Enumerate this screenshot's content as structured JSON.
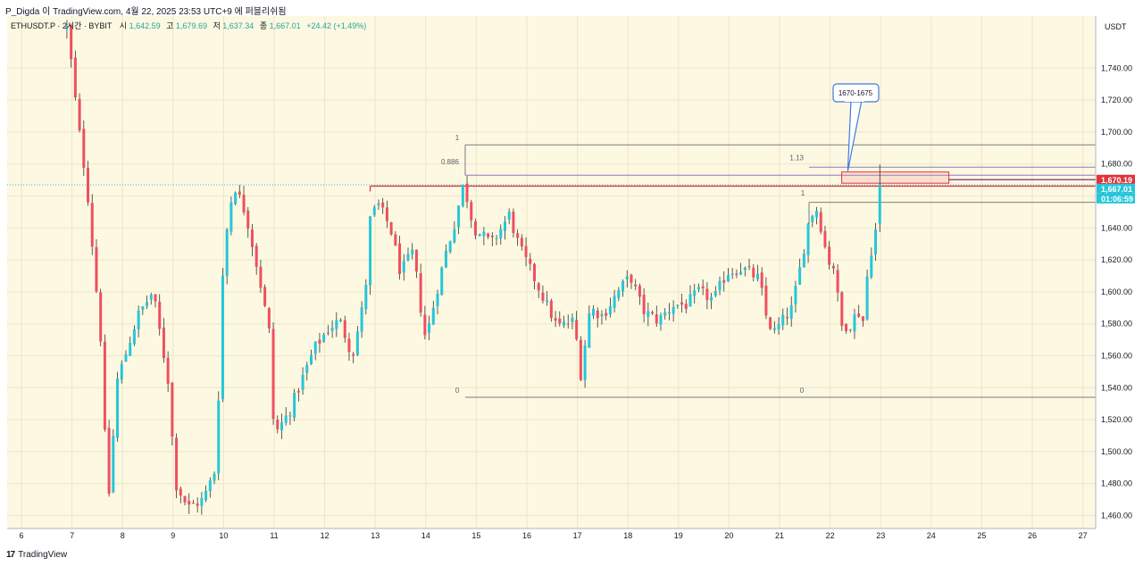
{
  "header": {
    "caption": "P_Digda 이 TradingView.com, 4월 22, 2025 23:53 UTC+9 에 퍼블리쉬됨"
  },
  "legend": {
    "symbol": "ETHUSDT.P · 2시간 · BYBIT",
    "open_label": "시",
    "open_value": "1,642.59",
    "high_label": "고",
    "high_value": "1,679.69",
    "low_label": "저",
    "low_value": "1,637.34",
    "close_label": "종",
    "close_value": "1,667.01",
    "change": "+24.42 (+1.49%)"
  },
  "footer": {
    "brand": "TradingView",
    "brand_mark": "17"
  },
  "colors": {
    "background": "#fdf8e1",
    "up": "#26c6da",
    "down": "#ef4f5f",
    "grid": "#ece6c8",
    "fib": "#7d7d7d",
    "resistance": "#e0343c",
    "zone": "#e0343c",
    "callout": "#3d7ae0",
    "price_line_purple": "#7b2c8a"
  },
  "chart_data": {
    "type": "candlestick",
    "symbol": "ETHUSDT.P",
    "interval": "2h",
    "exchange": "BYBIT",
    "currency_label": "USDT",
    "ylim": [
      1450,
      1760
    ],
    "y_ticks": [
      "1,460.00",
      "1,480.00",
      "1,500.00",
      "1,520.00",
      "1,540.00",
      "1,560.00",
      "1,580.00",
      "1,600.00",
      "1,620.00",
      "1,640.00",
      "1,660.00",
      "1,680.00",
      "1,700.00",
      "1,720.00",
      "1,740.00"
    ],
    "x_ticks": [
      "6",
      "7",
      "8",
      "9",
      "10",
      "11",
      "12",
      "13",
      "14",
      "15",
      "16",
      "17",
      "18",
      "19",
      "20",
      "21",
      "22",
      "23",
      "24",
      "25",
      "26",
      "27"
    ],
    "x_days": [
      6,
      7,
      8,
      9,
      10,
      11,
      12,
      13,
      14,
      15,
      16,
      17,
      18,
      19,
      20,
      21,
      22,
      23,
      24,
      25,
      26,
      27
    ],
    "x_range_days": [
      5.7,
      27.3
    ],
    "anchors": [
      {
        "day": 6.9,
        "price": 1765
      },
      {
        "day": 7.0,
        "price": 1740
      },
      {
        "day": 7.1,
        "price": 1710
      },
      {
        "day": 7.3,
        "price": 1665
      },
      {
        "day": 7.6,
        "price": 1560
      },
      {
        "day": 7.7,
        "price": 1460
      },
      {
        "day": 7.9,
        "price": 1545
      },
      {
        "day": 8.3,
        "price": 1585
      },
      {
        "day": 8.6,
        "price": 1600
      },
      {
        "day": 8.9,
        "price": 1545
      },
      {
        "day": 9.05,
        "price": 1480
      },
      {
        "day": 9.3,
        "price": 1465
      },
      {
        "day": 9.6,
        "price": 1470
      },
      {
        "day": 9.85,
        "price": 1490
      },
      {
        "day": 10.0,
        "price": 1625
      },
      {
        "day": 10.2,
        "price": 1668
      },
      {
        "day": 10.45,
        "price": 1648
      },
      {
        "day": 10.7,
        "price": 1610
      },
      {
        "day": 10.9,
        "price": 1575
      },
      {
        "day": 11.0,
        "price": 1510
      },
      {
        "day": 11.3,
        "price": 1525
      },
      {
        "day": 11.55,
        "price": 1545
      },
      {
        "day": 11.8,
        "price": 1565
      },
      {
        "day": 12.1,
        "price": 1578
      },
      {
        "day": 12.3,
        "price": 1582
      },
      {
        "day": 12.55,
        "price": 1560
      },
      {
        "day": 12.8,
        "price": 1598
      },
      {
        "day": 12.9,
        "price": 1645
      },
      {
        "day": 13.05,
        "price": 1655
      },
      {
        "day": 13.3,
        "price": 1640
      },
      {
        "day": 13.5,
        "price": 1612
      },
      {
        "day": 13.75,
        "price": 1625
      },
      {
        "day": 13.9,
        "price": 1590
      },
      {
        "day": 14.0,
        "price": 1570
      },
      {
        "day": 14.25,
        "price": 1605
      },
      {
        "day": 14.4,
        "price": 1625
      },
      {
        "day": 14.55,
        "price": 1640
      },
      {
        "day": 14.75,
        "price": 1668
      },
      {
        "day": 14.95,
        "price": 1640
      },
      {
        "day": 15.3,
        "price": 1630
      },
      {
        "day": 15.65,
        "price": 1648
      },
      {
        "day": 15.85,
        "price": 1628
      },
      {
        "day": 16.2,
        "price": 1605
      },
      {
        "day": 16.6,
        "price": 1578
      },
      {
        "day": 16.95,
        "price": 1582
      },
      {
        "day": 17.05,
        "price": 1545
      },
      {
        "day": 17.25,
        "price": 1590
      },
      {
        "day": 17.5,
        "price": 1585
      },
      {
        "day": 17.8,
        "price": 1600
      },
      {
        "day": 18.05,
        "price": 1610
      },
      {
        "day": 18.3,
        "price": 1588
      },
      {
        "day": 18.6,
        "price": 1582
      },
      {
        "day": 18.9,
        "price": 1592
      },
      {
        "day": 19.15,
        "price": 1592
      },
      {
        "day": 19.4,
        "price": 1600
      },
      {
        "day": 19.7,
        "price": 1595
      },
      {
        "day": 19.95,
        "price": 1612
      },
      {
        "day": 20.25,
        "price": 1615
      },
      {
        "day": 20.6,
        "price": 1608
      },
      {
        "day": 20.75,
        "price": 1582
      },
      {
        "day": 20.9,
        "price": 1575
      },
      {
        "day": 21.25,
        "price": 1590
      },
      {
        "day": 21.45,
        "price": 1622
      },
      {
        "day": 21.6,
        "price": 1648
      },
      {
        "day": 21.75,
        "price": 1652
      },
      {
        "day": 21.95,
        "price": 1620
      },
      {
        "day": 22.1,
        "price": 1615
      },
      {
        "day": 22.2,
        "price": 1578
      },
      {
        "day": 22.4,
        "price": 1580
      },
      {
        "day": 22.55,
        "price": 1588
      },
      {
        "day": 22.65,
        "price": 1582
      },
      {
        "day": 22.75,
        "price": 1615
      },
      {
        "day": 22.85,
        "price": 1632
      },
      {
        "day": 22.95,
        "price": 1645
      },
      {
        "day": 23.0,
        "price": 1667
      }
    ],
    "fib_left": {
      "level_1": 1692,
      "level_0886": 1673,
      "level_0": 1534,
      "labels": [
        "1",
        "0.886",
        "0"
      ],
      "start_day": 14.78
    },
    "fib_right": {
      "level_1": 1656,
      "level_113": 1678,
      "level_0": 1534,
      "labels": [
        "1",
        "1.13",
        "0"
      ],
      "start_day": 22.35
    },
    "resistance_lines": [
      1670.19,
      1667.01
    ],
    "resistance_start_day": 12.9,
    "zone": {
      "low": 1668,
      "high": 1675,
      "start_day": 22.3,
      "end_day": 24.35
    },
    "callout": {
      "text": "1670-1675",
      "target_day": 22.35,
      "target_price": 1675
    },
    "price_tags": [
      {
        "text": "1,670.19",
        "price": 1670.19,
        "color": "#e0343c"
      },
      {
        "text": "1,667.01",
        "price": 1664.6,
        "color": "#26c6da"
      },
      {
        "text": "01:06:59",
        "price": 1658.4,
        "color": "#26c6da"
      }
    ],
    "current_price": 1667.01
  }
}
